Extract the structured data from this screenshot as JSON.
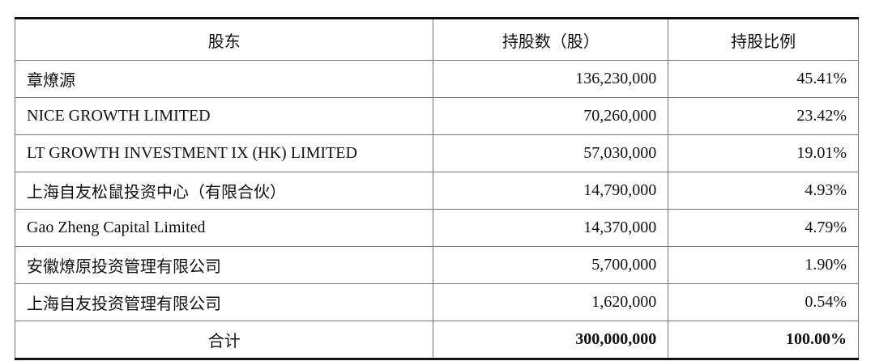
{
  "headers": [
    "股东",
    "持股数（股）",
    "持股比例"
  ],
  "rows": [
    {
      "holder": "章燎源",
      "shares": "136,230,000",
      "ratio": "45.41%"
    },
    {
      "holder": "NICE GROWTH LIMITED",
      "shares": "70,260,000",
      "ratio": "23.42%"
    },
    {
      "holder": "LT GROWTH INVESTMENT IX (HK) LIMITED",
      "shares": "57,030,000",
      "ratio": "19.01%"
    },
    {
      "holder": "上海自友松鼠投资中心（有限合伙）",
      "shares": "14,790,000",
      "ratio": "4.93%"
    },
    {
      "holder": "Gao Zheng Capital Limited",
      "shares": "14,370,000",
      "ratio": "4.79%"
    },
    {
      "holder": "安徽燎原投资管理有限公司",
      "shares": "5,700,000",
      "ratio": "1.90%"
    },
    {
      "holder": "上海自友投资管理有限公司",
      "shares": "1,620,000",
      "ratio": "0.54%"
    }
  ],
  "total": {
    "label": "合计",
    "shares": "300,000,000",
    "ratio": "100.00%"
  }
}
